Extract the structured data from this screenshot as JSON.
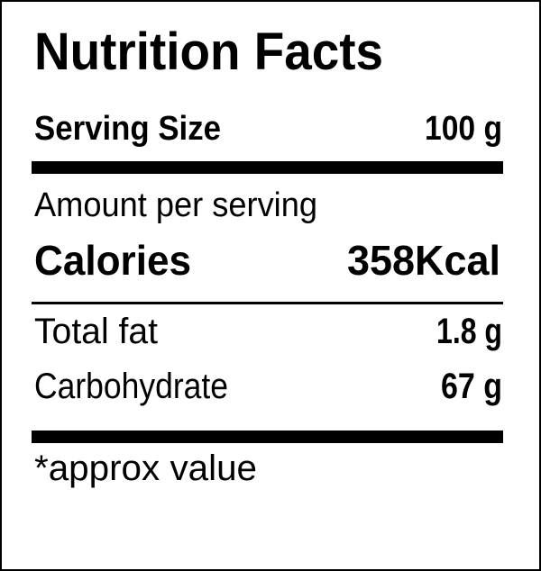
{
  "header": {
    "title": "Nutrition Facts"
  },
  "serving": {
    "label": "Serving Size",
    "value": "100 g"
  },
  "amount_label": "Amount per serving",
  "calories": {
    "label": "Calories",
    "value": "358Kcal"
  },
  "nutrients": [
    {
      "label": "Total fat",
      "value": "1.8 g"
    },
    {
      "label": "Carbohydrate",
      "value": "67 g"
    }
  ],
  "footnote": "*approx value"
}
